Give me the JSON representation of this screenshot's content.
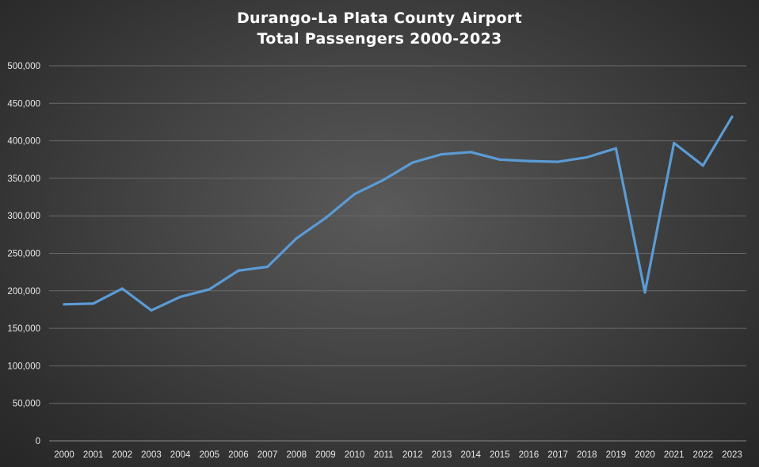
{
  "chart_data": {
    "type": "line",
    "title": "Durango-La Plata County Airport",
    "subtitle": "Total Passengers 2000-2023",
    "xlabel": "",
    "ylabel": "",
    "ylim": [
      0,
      500000
    ],
    "grid": true,
    "legend": "none",
    "line_color": "#5b9bd5",
    "y_ticks": [
      "0",
      "50,000",
      "100,000",
      "150,000",
      "200,000",
      "250,000",
      "300,000",
      "350,000",
      "400,000",
      "450,000",
      "500,000"
    ],
    "categories": [
      "2000",
      "2001",
      "2002",
      "2003",
      "2004",
      "2005",
      "2006",
      "2007",
      "2008",
      "2009",
      "2010",
      "2011",
      "2012",
      "2013",
      "2014",
      "2015",
      "2016",
      "2017",
      "2018",
      "2019",
      "2020",
      "2021",
      "2022",
      "2023"
    ],
    "series": [
      {
        "name": "Total Passengers",
        "values": [
          182000,
          183000,
          203000,
          174000,
          192000,
          202000,
          227000,
          232000,
          270000,
          297000,
          329000,
          348000,
          371000,
          382000,
          385000,
          375000,
          373000,
          372000,
          378000,
          390000,
          198000,
          397000,
          367000,
          432000
        ]
      }
    ]
  }
}
